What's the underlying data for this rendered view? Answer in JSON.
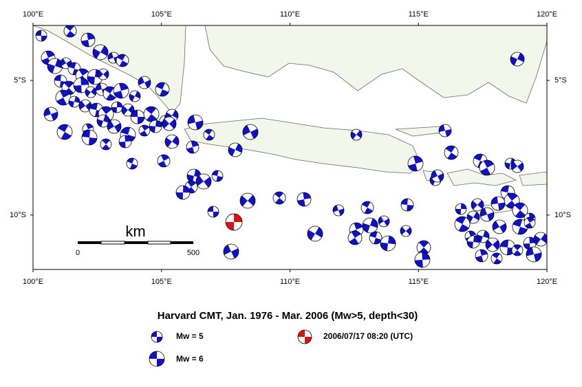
{
  "map": {
    "title": "Harvard CMT, Jan. 1976 - Mar. 2006 (Mw>5, depth<30)",
    "lonlim": [
      100,
      120
    ],
    "latlim": [
      -2.96,
      -12.02
    ],
    "lon_ticks": [
      {
        "value": 100,
        "label": "100°E"
      },
      {
        "value": 105,
        "label": "105°E"
      },
      {
        "value": 110,
        "label": "110°E"
      },
      {
        "value": 115,
        "label": "115°E"
      },
      {
        "value": 120,
        "label": "120°E"
      }
    ],
    "lat_ticks": [
      {
        "value": -5,
        "label": "5°S"
      },
      {
        "value": -10,
        "label": "10°S"
      }
    ],
    "scale_bar": {
      "unit": "km",
      "ticks": [
        0,
        500
      ]
    },
    "event_color": "#1010c8",
    "highlight": {
      "lon": 107.82,
      "lat": -10.26,
      "color": "#e01010",
      "label": "2006/07/17 08:20 (UTC)"
    },
    "legend": [
      {
        "label": "Mw = 5"
      },
      {
        "label": "Mw = 6"
      }
    ]
  }
}
